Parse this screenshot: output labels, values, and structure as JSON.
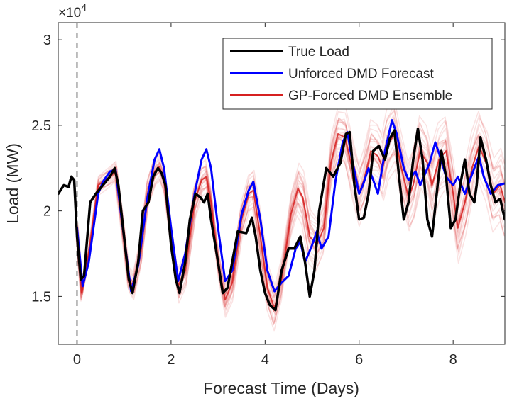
{
  "chart_data": {
    "type": "line",
    "title": "",
    "xlabel": "Forecast Time (Days)",
    "ylabel": "Load (MW)",
    "y_exponent_label": "×10",
    "y_exponent_power": "4",
    "xlim": [
      -0.4,
      9.1
    ],
    "ylim": [
      12200,
      31000
    ],
    "x_ticks": [
      0,
      2,
      4,
      6,
      8
    ],
    "x_tick_labels": [
      "0",
      "2",
      "4",
      "6",
      "8"
    ],
    "y_ticks": [
      15000,
      20000,
      25000,
      30000
    ],
    "y_tick_labels": [
      "1.5",
      "2",
      "2.5",
      "3"
    ],
    "forecast_start_x": 0,
    "legend_position": "top-right",
    "colors": {
      "true": "#000000",
      "unforced": "#0000ff",
      "ensemble": "#d62020"
    },
    "series": [
      {
        "name": "True Load",
        "color": "#000000",
        "points": [
          [
            -0.4,
            21000
          ],
          [
            -0.28,
            21500
          ],
          [
            -0.18,
            21400
          ],
          [
            -0.12,
            22000
          ],
          [
            -0.06,
            21800
          ],
          [
            0.0,
            18500
          ],
          [
            0.08,
            16000
          ],
          [
            0.15,
            16200
          ],
          [
            0.28,
            20500
          ],
          [
            0.4,
            21000
          ],
          [
            0.55,
            21500
          ],
          [
            0.7,
            22000
          ],
          [
            0.8,
            22500
          ],
          [
            0.88,
            21500
          ],
          [
            1.0,
            18500
          ],
          [
            1.1,
            16000
          ],
          [
            1.18,
            15200
          ],
          [
            1.3,
            17000
          ],
          [
            1.4,
            20000
          ],
          [
            1.52,
            20500
          ],
          [
            1.62,
            22000
          ],
          [
            1.72,
            22500
          ],
          [
            1.8,
            22200
          ],
          [
            1.88,
            21500
          ],
          [
            2.0,
            18000
          ],
          [
            2.1,
            16000
          ],
          [
            2.18,
            15200
          ],
          [
            2.3,
            17000
          ],
          [
            2.4,
            19500
          ],
          [
            2.52,
            21000
          ],
          [
            2.62,
            20800
          ],
          [
            2.7,
            20500
          ],
          [
            2.78,
            21000
          ],
          [
            2.85,
            19500
          ],
          [
            3.0,
            17000
          ],
          [
            3.1,
            15200
          ],
          [
            3.2,
            15500
          ],
          [
            3.3,
            17000
          ],
          [
            3.42,
            18800
          ],
          [
            3.6,
            18700
          ],
          [
            3.72,
            19600
          ],
          [
            3.8,
            18500
          ],
          [
            3.9,
            16500
          ],
          [
            4.0,
            15200
          ],
          [
            4.1,
            14500
          ],
          [
            4.22,
            14200
          ],
          [
            4.35,
            16500
          ],
          [
            4.5,
            17800
          ],
          [
            4.62,
            17800
          ],
          [
            4.75,
            18500
          ],
          [
            4.85,
            17000
          ],
          [
            4.95,
            15000
          ],
          [
            5.05,
            16500
          ],
          [
            5.15,
            20000
          ],
          [
            5.3,
            22500
          ],
          [
            5.45,
            22000
          ],
          [
            5.6,
            22800
          ],
          [
            5.72,
            24500
          ],
          [
            5.8,
            24600
          ],
          [
            5.9,
            21500
          ],
          [
            6.0,
            19500
          ],
          [
            6.1,
            19600
          ],
          [
            6.2,
            21000
          ],
          [
            6.3,
            23500
          ],
          [
            6.42,
            23800
          ],
          [
            6.55,
            23000
          ],
          [
            6.65,
            24200
          ],
          [
            6.75,
            24700
          ],
          [
            6.85,
            22000
          ],
          [
            6.95,
            19500
          ],
          [
            7.05,
            20500
          ],
          [
            7.15,
            23000
          ],
          [
            7.25,
            24800
          ],
          [
            7.35,
            23000
          ],
          [
            7.45,
            19500
          ],
          [
            7.55,
            18500
          ],
          [
            7.65,
            21000
          ],
          [
            7.75,
            23500
          ],
          [
            7.85,
            22000
          ],
          [
            7.95,
            19000
          ],
          [
            8.05,
            19500
          ],
          [
            8.15,
            21500
          ],
          [
            8.25,
            23000
          ],
          [
            8.35,
            21000
          ],
          [
            8.45,
            20500
          ],
          [
            8.5,
            21500
          ],
          [
            8.58,
            24300
          ],
          [
            8.7,
            23000
          ],
          [
            8.8,
            21500
          ],
          [
            8.9,
            20500
          ],
          [
            9.0,
            20700
          ],
          [
            9.1,
            19500
          ]
        ]
      },
      {
        "name": "Unforced DMD Forecast",
        "color": "#0000ff",
        "points": [
          [
            0.0,
            19000
          ],
          [
            0.12,
            15600
          ],
          [
            0.25,
            17000
          ],
          [
            0.45,
            21000
          ],
          [
            0.55,
            21700
          ],
          [
            0.7,
            22300
          ],
          [
            0.82,
            22400
          ],
          [
            0.95,
            19500
          ],
          [
            1.15,
            15300
          ],
          [
            1.3,
            16800
          ],
          [
            1.5,
            20800
          ],
          [
            1.65,
            23000
          ],
          [
            1.75,
            23600
          ],
          [
            1.85,
            22500
          ],
          [
            2.0,
            19000
          ],
          [
            2.15,
            15900
          ],
          [
            2.3,
            17500
          ],
          [
            2.5,
            21000
          ],
          [
            2.65,
            23000
          ],
          [
            2.75,
            23600
          ],
          [
            2.85,
            22500
          ],
          [
            3.0,
            19000
          ],
          [
            3.15,
            15900
          ],
          [
            3.3,
            16500
          ],
          [
            3.5,
            19800
          ],
          [
            3.65,
            21200
          ],
          [
            3.75,
            21700
          ],
          [
            3.9,
            19500
          ],
          [
            4.05,
            16500
          ],
          [
            4.2,
            15300
          ],
          [
            4.35,
            15800
          ],
          [
            4.5,
            16200
          ],
          [
            4.65,
            17800
          ],
          [
            4.75,
            18200
          ],
          [
            4.85,
            17000
          ],
          [
            5.0,
            18000
          ],
          [
            5.1,
            18800
          ],
          [
            5.2,
            17800
          ],
          [
            5.35,
            18500
          ],
          [
            5.5,
            21800
          ],
          [
            5.65,
            24000
          ],
          [
            5.75,
            24600
          ],
          [
            5.85,
            23000
          ],
          [
            6.0,
            21000
          ],
          [
            6.08,
            21500
          ],
          [
            6.2,
            22500
          ],
          [
            6.3,
            21800
          ],
          [
            6.4,
            21000
          ],
          [
            6.55,
            23500
          ],
          [
            6.7,
            25300
          ],
          [
            6.8,
            24500
          ],
          [
            6.95,
            22500
          ],
          [
            7.05,
            21800
          ],
          [
            7.2,
            22300
          ],
          [
            7.3,
            21500
          ],
          [
            7.5,
            22800
          ],
          [
            7.62,
            24000
          ],
          [
            7.72,
            23200
          ],
          [
            7.85,
            22000
          ],
          [
            8.0,
            21500
          ],
          [
            8.1,
            22000
          ],
          [
            8.25,
            21000
          ],
          [
            8.45,
            22500
          ],
          [
            8.55,
            23200
          ],
          [
            8.65,
            22000
          ],
          [
            8.8,
            21000
          ],
          [
            8.95,
            21500
          ],
          [
            9.1,
            21600
          ]
        ]
      },
      {
        "name": "GP-Forced DMD Ensemble",
        "color": "#d62020",
        "points": [
          [
            0.0,
            18800
          ],
          [
            0.1,
            15200
          ],
          [
            0.25,
            17500
          ],
          [
            0.45,
            21500
          ],
          [
            0.6,
            21800
          ],
          [
            0.7,
            22000
          ],
          [
            0.82,
            22300
          ],
          [
            0.95,
            19500
          ],
          [
            1.1,
            16000
          ],
          [
            1.2,
            15600
          ],
          [
            1.35,
            17500
          ],
          [
            1.5,
            21000
          ],
          [
            1.65,
            22300
          ],
          [
            1.75,
            22600
          ],
          [
            1.85,
            21800
          ],
          [
            2.0,
            18500
          ],
          [
            2.15,
            15600
          ],
          [
            2.3,
            16500
          ],
          [
            2.5,
            20500
          ],
          [
            2.65,
            21800
          ],
          [
            2.75,
            22000
          ],
          [
            2.85,
            20500
          ],
          [
            3.0,
            17000
          ],
          [
            3.15,
            14800
          ],
          [
            3.3,
            15800
          ],
          [
            3.5,
            19500
          ],
          [
            3.65,
            21000
          ],
          [
            3.75,
            21200
          ],
          [
            3.9,
            18500
          ],
          [
            4.05,
            15500
          ],
          [
            4.2,
            14300
          ],
          [
            4.35,
            16000
          ],
          [
            4.55,
            19800
          ],
          [
            4.7,
            21300
          ],
          [
            4.8,
            20800
          ],
          [
            4.95,
            18500
          ],
          [
            5.1,
            18000
          ],
          [
            5.25,
            19000
          ],
          [
            5.4,
            22800
          ],
          [
            5.55,
            24500
          ],
          [
            5.7,
            24300
          ],
          [
            5.85,
            22500
          ],
          [
            6.0,
            21000
          ],
          [
            6.1,
            21800
          ],
          [
            6.25,
            23500
          ],
          [
            6.4,
            23200
          ],
          [
            6.5,
            22500
          ],
          [
            6.6,
            23800
          ],
          [
            6.75,
            24500
          ],
          [
            6.9,
            22500
          ],
          [
            7.05,
            20800
          ],
          [
            7.15,
            21500
          ],
          [
            7.3,
            23500
          ],
          [
            7.45,
            22800
          ],
          [
            7.55,
            21500
          ],
          [
            7.7,
            23000
          ],
          [
            7.85,
            23500
          ],
          [
            8.0,
            21000
          ],
          [
            8.1,
            19000
          ],
          [
            8.25,
            20500
          ],
          [
            8.4,
            22500
          ],
          [
            8.55,
            23800
          ],
          [
            8.7,
            22800
          ],
          [
            8.85,
            21000
          ],
          [
            9.0,
            21500
          ],
          [
            9.1,
            20500
          ]
        ]
      }
    ],
    "ensemble_spread": [
      [
        0.0,
        400
      ],
      [
        0.3,
        500
      ],
      [
        0.8,
        500
      ],
      [
        1.2,
        600
      ],
      [
        2.0,
        700
      ],
      [
        3.0,
        800
      ],
      [
        4.2,
        1000
      ],
      [
        5.0,
        1200
      ],
      [
        6.0,
        1500
      ],
      [
        7.0,
        1600
      ],
      [
        8.0,
        1700
      ],
      [
        9.1,
        1800
      ]
    ],
    "ensemble_members": 26
  }
}
